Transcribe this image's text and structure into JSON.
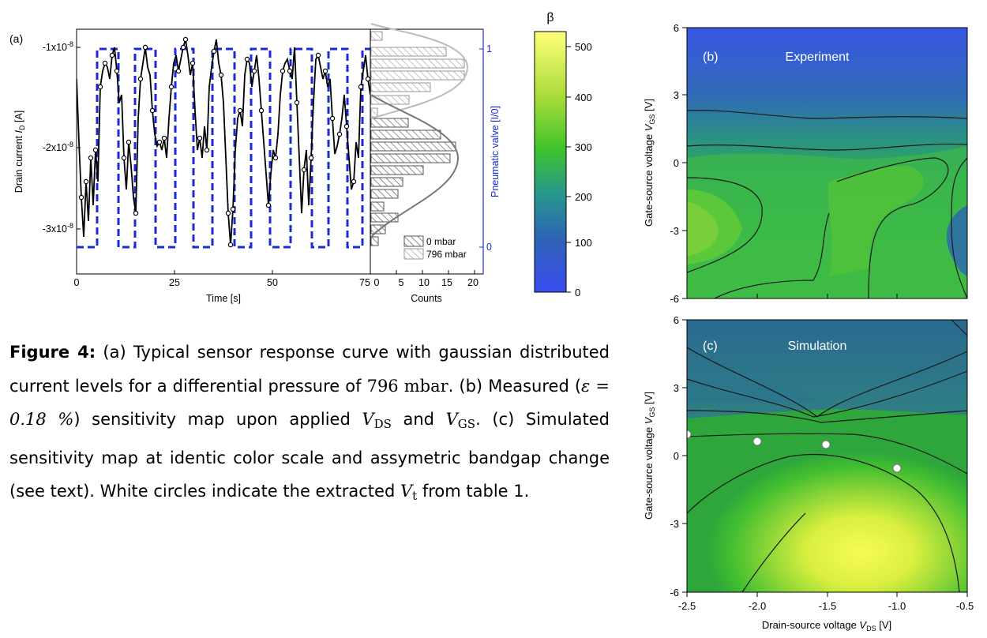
{
  "panel_a": {
    "label": "(a)",
    "time_axis": {
      "label": "Time [s]",
      "ticks": [
        "0",
        "25",
        "50",
        "75"
      ]
    },
    "current_axis": {
      "label_main": "Drain current ",
      "label_var": "I",
      "label_sub": "D",
      "label_unit": " [A]",
      "ticks": [
        "-1x10",
        "-2x10",
        "-3x10"
      ],
      "tick_exp": "-8"
    },
    "valve_axis": {
      "label": "Pneumatic valve [I/0]",
      "ticks": [
        "1",
        "0"
      ]
    },
    "counts_axis": {
      "label": "Counts",
      "ticks": [
        "0",
        "5",
        "10",
        "15",
        "20"
      ]
    },
    "legend": [
      "0 mbar",
      "796 mbar"
    ]
  },
  "colorbar": {
    "title": "β",
    "ticks": [
      "500",
      "400",
      "300",
      "200",
      "100",
      "0"
    ]
  },
  "panel_b": {
    "label": "(b)",
    "title": "Experiment"
  },
  "panel_c": {
    "label": "(c)",
    "title": "Simulation"
  },
  "maps": {
    "y_label_main": "Gate-source voltage ",
    "y_label_var": "V",
    "y_label_sub": "GS",
    "y_label_unit": " [V]",
    "y_ticks": [
      "6",
      "3",
      "0",
      "-3",
      "-6"
    ],
    "x_label_main": "Drain-source voltage ",
    "x_label_var": "V",
    "x_label_sub": "DS",
    "x_label_unit": " [V]",
    "x_ticks": [
      "-2.5",
      "-2.0",
      "-1.5",
      "-1.0",
      "-0.5"
    ]
  },
  "caption": {
    "fig": "Figure 4:",
    "t1": " (a) Typical sensor response curve with gaussian distributed current levels for a differential pressure of ",
    "p_val": "796 mbar",
    "t2": ". (b) Measured (",
    "eps": "ε = 0.18 %",
    "t3": ") sensitivity map upon applied ",
    "t4": " and ",
    "t5": ". (c) Simulated sensitivity map at identic color scale and assymetric bandgap change (see text). White circles indicate the extracted ",
    "t6": " from table 1.",
    "v": "V",
    "ds": "DS",
    "gs": "GS",
    "t": "t"
  }
}
